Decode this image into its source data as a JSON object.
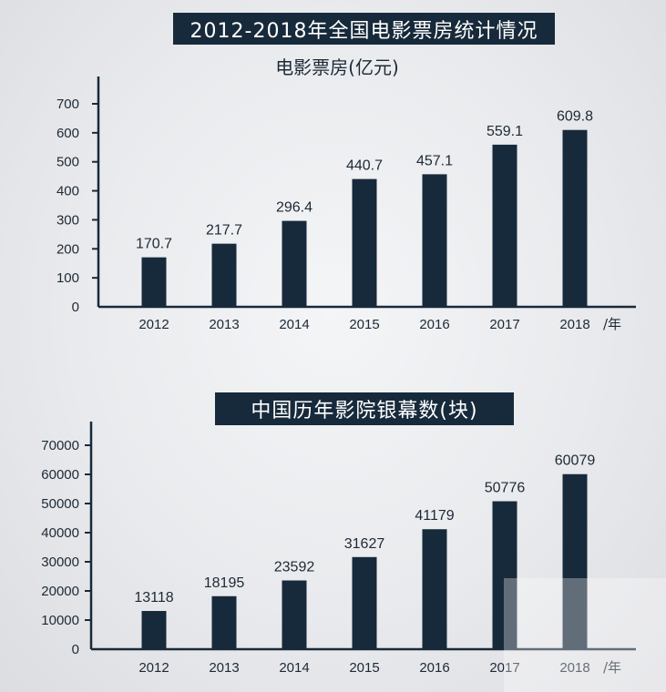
{
  "title": "2012-2018年全国电影票房统计情况",
  "chart_data": [
    {
      "type": "bar",
      "subtitle": "电影票房(亿元)",
      "categories": [
        "2012",
        "2013",
        "2014",
        "2015",
        "2016",
        "2017",
        "2018"
      ],
      "values": [
        170.7,
        217.7,
        296.4,
        440.7,
        457.1,
        559.1,
        609.8
      ],
      "value_labels": [
        "170.7",
        "217.7",
        "296.4",
        "440.7",
        "457.1",
        "559.1",
        "609.8"
      ],
      "x_unit": "/年",
      "ylim": [
        0,
        700
      ],
      "yticks": [
        0,
        100,
        200,
        300,
        400,
        500,
        600,
        700
      ],
      "grid": false,
      "legend": "none",
      "bar_color": "#172a3b"
    },
    {
      "type": "bar",
      "title": "中国历年影院银幕数(块)",
      "categories": [
        "2012",
        "2013",
        "2014",
        "2015",
        "2016",
        "2017",
        "2018"
      ],
      "values": [
        13118,
        18195,
        23592,
        31627,
        41179,
        50776,
        60079
      ],
      "value_labels": [
        "13118",
        "18195",
        "23592",
        "31627",
        "41179",
        "50776",
        "60079"
      ],
      "x_unit": "/年",
      "ylim": [
        0,
        70000
      ],
      "yticks": [
        0,
        10000,
        20000,
        30000,
        40000,
        50000,
        60000,
        70000
      ],
      "grid": false,
      "legend": "none",
      "bar_color": "#172a3b"
    }
  ]
}
